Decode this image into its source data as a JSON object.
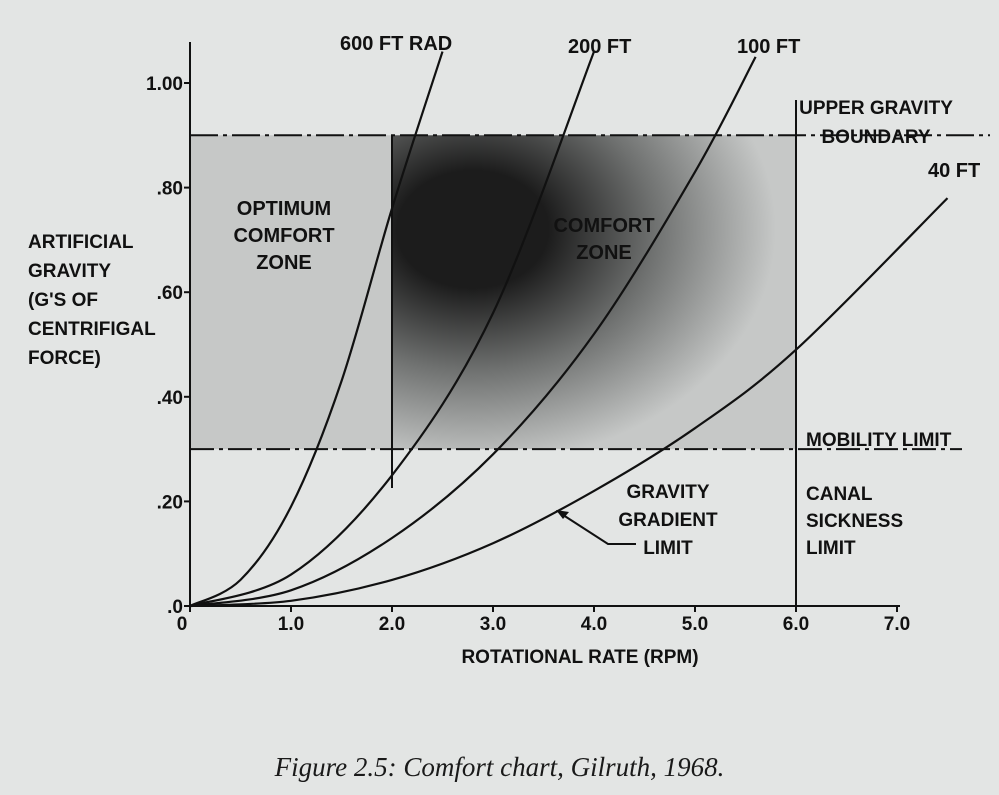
{
  "chart_data": {
    "type": "line",
    "title": "",
    "xlabel": "ROTATIONAL RATE (RPM)",
    "ylabel_lines": [
      "ARTIFICIAL",
      "GRAVITY",
      "(G'S OF",
      "CENTRIFIGAL",
      "FORCE)"
    ],
    "xlim": [
      0,
      7.0
    ],
    "ylim": [
      0,
      1.05
    ],
    "x_ticks": [
      {
        "value": 0,
        "label": "0"
      },
      {
        "value": 1,
        "label": "1.0"
      },
      {
        "value": 2,
        "label": "2.0"
      },
      {
        "value": 3,
        "label": "3.0"
      },
      {
        "value": 4,
        "label": "4.0"
      },
      {
        "value": 5,
        "label": "5.0"
      },
      {
        "value": 6,
        "label": "6.0"
      },
      {
        "value": 7,
        "label": "7.0"
      }
    ],
    "y_ticks": [
      {
        "value": 0,
        "label": ".0"
      },
      {
        "value": 0.2,
        "label": ".20"
      },
      {
        "value": 0.4,
        "label": ".40"
      },
      {
        "value": 0.6,
        "label": ".60"
      },
      {
        "value": 0.8,
        "label": ".80"
      },
      {
        "value": 1.0,
        "label": "1.00"
      }
    ],
    "series": [
      {
        "name": "600 FT RAD",
        "radius_ft": 600,
        "x": [
          0.0,
          0.5,
          1.0,
          1.5,
          2.0,
          2.5
        ],
        "y": [
          0.0,
          0.05,
          0.19,
          0.43,
          0.76,
          1.06
        ]
      },
      {
        "name": "200 FT",
        "radius_ft": 200,
        "x": [
          0.0,
          1.0,
          2.0,
          3.0,
          4.0
        ],
        "y": [
          0.0,
          0.06,
          0.25,
          0.56,
          1.06
        ]
      },
      {
        "name": "100 FT",
        "radius_ft": 100,
        "x": [
          0.0,
          1.0,
          2.0,
          3.0,
          4.0,
          5.0,
          5.6
        ],
        "y": [
          0.0,
          0.03,
          0.13,
          0.29,
          0.52,
          0.83,
          1.05
        ]
      },
      {
        "name": "40 FT",
        "radius_ft": 40,
        "x": [
          0.0,
          1.0,
          2.0,
          3.0,
          4.0,
          5.0,
          6.0,
          7.5
        ],
        "y": [
          0.0,
          0.01,
          0.05,
          0.12,
          0.22,
          0.34,
          0.49,
          0.78
        ]
      }
    ],
    "boundaries": {
      "upper_gravity": {
        "value": 0.9,
        "label": "UPPER GRAVITY BOUNDARY"
      },
      "mobility_limit": {
        "value": 0.3,
        "label": "MOBILITY LIMIT"
      },
      "canal_sickness_rpm": {
        "value": 6.0,
        "label": "CANAL SICKNESS LIMIT"
      },
      "comfort_rpm_min": 2.0
    },
    "annotations": {
      "optimum_comfort_zone": "OPTIMUM COMFORT ZONE",
      "comfort_zone": "COMFORT ZONE",
      "gravity_gradient_limit": "GRAVITY GRADIENT LIMIT"
    },
    "colors": {
      "ink": "#111111",
      "background": "#e3e5e4",
      "shade_dark": "#1c1c1c",
      "shade_light": "#c6c8c7"
    }
  },
  "caption": "Figure 2.5:  Comfort chart, Gilruth, 1968."
}
